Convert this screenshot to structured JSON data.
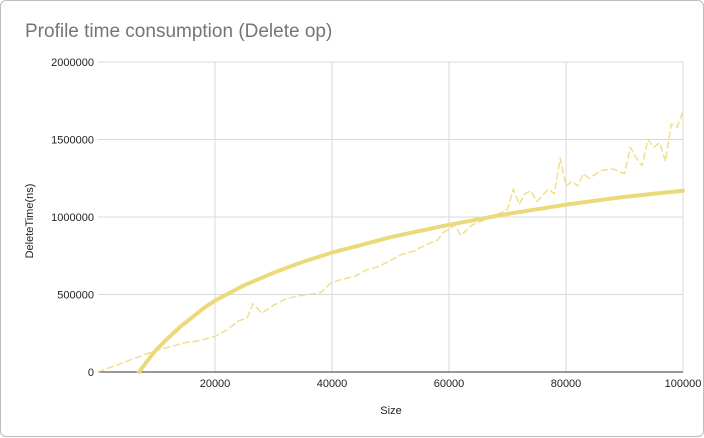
{
  "chart_data": {
    "type": "line",
    "title": "Profile time consumption (Delete op)",
    "xlabel": "Size",
    "ylabel": "DeleteTime(ns)",
    "xlim": [
      0,
      100000
    ],
    "ylim": [
      0,
      2000000
    ],
    "x_ticks": [
      20000,
      40000,
      60000,
      80000,
      100000
    ],
    "y_ticks": [
      0,
      500000,
      1000000,
      1500000,
      2000000
    ],
    "grid": true,
    "line_color": "#ecd97a",
    "series": [
      {
        "style": "dashed",
        "x": [
          0,
          5000,
          10000,
          15000,
          17000,
          19000,
          20000,
          22000,
          24000,
          25500,
          26500,
          28000,
          30000,
          32000,
          34000,
          36000,
          38000,
          40000,
          42000,
          44000,
          46000,
          48000,
          50000,
          52000,
          54000,
          56000,
          58000,
          59000,
          60000,
          61000,
          62000,
          64000,
          66000,
          68000,
          70000,
          71000,
          72000,
          73000,
          74000,
          75000,
          76000,
          77000,
          78000,
          79000,
          80000,
          81000,
          82000,
          83000,
          84000,
          86000,
          88000,
          90000,
          91000,
          92000,
          93000,
          94000,
          95000,
          96000,
          97000,
          98000,
          99000,
          100000
        ],
        "y": [
          0,
          70000,
          140000,
          190000,
          200000,
          220000,
          230000,
          270000,
          330000,
          350000,
          440000,
          380000,
          430000,
          470000,
          490000,
          500000,
          510000,
          580000,
          600000,
          620000,
          660000,
          680000,
          720000,
          760000,
          780000,
          820000,
          850000,
          900000,
          920000,
          950000,
          880000,
          950000,
          980000,
          1010000,
          1050000,
          1180000,
          1080000,
          1150000,
          1170000,
          1100000,
          1140000,
          1180000,
          1150000,
          1380000,
          1200000,
          1230000,
          1200000,
          1280000,
          1250000,
          1300000,
          1310000,
          1280000,
          1450000,
          1380000,
          1330000,
          1500000,
          1450000,
          1480000,
          1360000,
          1600000,
          1580000,
          1680000
        ]
      },
      {
        "style": "solid trendline",
        "x": [
          7000,
          8000,
          9000,
          10000,
          12000,
          14000,
          16000,
          18000,
          20000,
          25000,
          30000,
          35000,
          40000,
          45000,
          50000,
          55000,
          60000,
          65000,
          70000,
          75000,
          80000,
          85000,
          90000,
          95000,
          100000
        ],
        "y": [
          0,
          50000,
          100000,
          145000,
          220000,
          290000,
          350000,
          410000,
          460000,
          560000,
          640000,
          710000,
          770000,
          820000,
          870000,
          910000,
          950000,
          985000,
          1020000,
          1050000,
          1080000,
          1105000,
          1130000,
          1150000,
          1170000
        ]
      }
    ]
  }
}
